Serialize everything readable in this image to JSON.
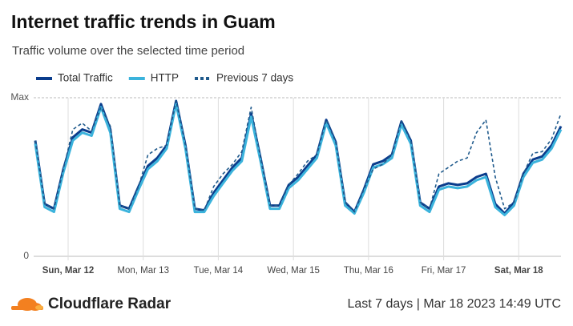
{
  "chart_data": {
    "type": "line",
    "title": "Internet traffic trends in Guam",
    "subtitle": "Traffic volume over the selected time period",
    "x": [
      0,
      3,
      6,
      9,
      12,
      15,
      18,
      21,
      24,
      27,
      30,
      33,
      36,
      39,
      42,
      45,
      48,
      51,
      54,
      57,
      60,
      63,
      66,
      69,
      72,
      75,
      78,
      81,
      84,
      87,
      90,
      93,
      96,
      99,
      102,
      105,
      108,
      111,
      114,
      117,
      120,
      123,
      126,
      129,
      132,
      135,
      138,
      141,
      144,
      147,
      150,
      153,
      156,
      159,
      162,
      165,
      168
    ],
    "xlim": [
      0,
      168
    ],
    "xticks": [
      {
        "value": 10.5,
        "label": "Sun, Mar 12",
        "bold": true
      },
      {
        "value": 34.5,
        "label": "Mon, Mar 13"
      },
      {
        "value": 58.5,
        "label": "Tue, Mar 14"
      },
      {
        "value": 82.5,
        "label": "Wed, Mar 15"
      },
      {
        "value": 106.5,
        "label": "Thu, Mar 16"
      },
      {
        "value": 130.5,
        "label": "Fri, Mar 17"
      },
      {
        "value": 154.5,
        "label": "Sat, Mar 18",
        "bold": true
      }
    ],
    "ylim": [
      0,
      100
    ],
    "yticks": [
      0,
      {
        "value": 100,
        "label": "Max"
      }
    ],
    "grid": true,
    "series": [
      {
        "name": "Total Traffic",
        "color": "#0a3c8c",
        "values": [
          73,
          33,
          30,
          55,
          75,
          80,
          78,
          96,
          80,
          32,
          30,
          44,
          57,
          62,
          70,
          98,
          70,
          30,
          29,
          40,
          48,
          56,
          62,
          90,
          62,
          32,
          32,
          45,
          50,
          57,
          64,
          86,
          72,
          34,
          28,
          42,
          58,
          60,
          64,
          85,
          73,
          34,
          30,
          44,
          46,
          45,
          46,
          50,
          52,
          33,
          27,
          34,
          52,
          61,
          63,
          70,
          82
        ]
      },
      {
        "name": "HTTP",
        "color": "#3bb3dc",
        "values": [
          71,
          31,
          28,
          53,
          73,
          78,
          76,
          94,
          78,
          30,
          28,
          42,
          55,
          60,
          68,
          96,
          68,
          28,
          28,
          38,
          46,
          54,
          60,
          88,
          60,
          30,
          30,
          43,
          48,
          55,
          62,
          84,
          70,
          32,
          27,
          40,
          56,
          58,
          62,
          83,
          71,
          32,
          28,
          42,
          44,
          43,
          44,
          48,
          50,
          31,
          26,
          32,
          50,
          59,
          61,
          68,
          80
        ]
      },
      {
        "name": "Previous 7 days",
        "color": "#1f5a8c",
        "dash": true,
        "values": [
          73,
          33,
          30,
          55,
          80,
          84,
          79,
          94,
          82,
          32,
          30,
          44,
          64,
          68,
          70,
          98,
          70,
          30,
          29,
          44,
          52,
          58,
          66,
          94,
          62,
          32,
          32,
          45,
          52,
          60,
          64,
          86,
          72,
          34,
          28,
          42,
          55,
          58,
          64,
          85,
          73,
          34,
          30,
          52,
          56,
          60,
          62,
          78,
          86,
          50,
          30,
          34,
          52,
          65,
          66,
          74,
          90
        ]
      }
    ]
  },
  "footer": {
    "brand": "Cloudflare Radar",
    "timestamp": "Last 7 days | Mar 18 2023 14:49 UTC"
  }
}
